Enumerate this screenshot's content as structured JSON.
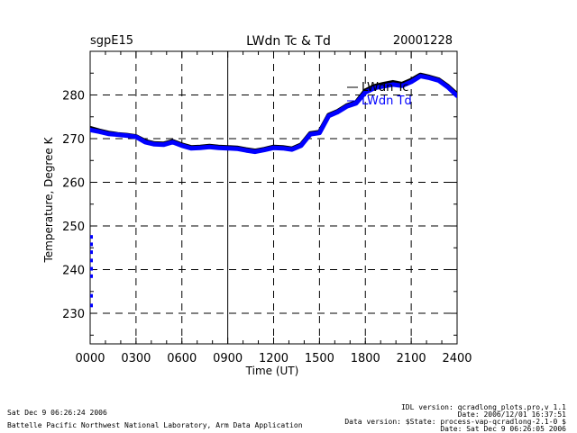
{
  "header": {
    "left": "sgpE15",
    "center": "LWdn Tc & Td",
    "right": "20001228"
  },
  "footer": {
    "timestamp": "Sat Dec  9 06:26:24 2006",
    "lab": "Battelle Pacific Northwest National Laboratory, Arm Data Application",
    "idl_version": "IDL version: qcradlong_plots.pro,v 1.1",
    "date_line": "Date: 2006/12/01 16:37:51",
    "data_version": "Data version: $State: process-vap-qcradlong-2.1-0 $",
    "date_sat": "Date: Sat Dec  9 06:26:05 2006"
  },
  "colors": {
    "tc": "#000000",
    "td": "#0000ff",
    "grid": "#000000"
  },
  "chart_data": {
    "type": "line",
    "title": "LWdn Tc & Td",
    "xlabel": "Time (UT)",
    "ylabel": "Temperature, Degree K",
    "xlim": [
      0,
      2400
    ],
    "ylim": [
      223,
      290
    ],
    "x_ticks": [
      0,
      300,
      600,
      900,
      1200,
      1500,
      1800,
      2100,
      2400
    ],
    "x_tick_labels": [
      "0000",
      "0300",
      "0600",
      "0900",
      "1200",
      "1500",
      "1800",
      "2100",
      "2400"
    ],
    "y_ticks": [
      230,
      240,
      250,
      260,
      270,
      280
    ],
    "y_tick_labels": [
      "230",
      "240",
      "250",
      "260",
      "270",
      "280"
    ],
    "grid": true,
    "legend_position": "top-right",
    "x": [
      0,
      60,
      120,
      180,
      240,
      300,
      360,
      420,
      480,
      540,
      600,
      660,
      720,
      780,
      840,
      900,
      960,
      1020,
      1080,
      1140,
      1200,
      1260,
      1320,
      1380,
      1440,
      1500,
      1560,
      1620,
      1680,
      1740,
      1800,
      1860,
      1920,
      1980,
      2040,
      2100,
      2160,
      2220,
      2280,
      2340,
      2400
    ],
    "series": [
      {
        "name": "LWdn Tc",
        "values": [
          272.4,
          271.8,
          271.3,
          271.0,
          270.8,
          270.5,
          269.4,
          268.9,
          268.8,
          269.4,
          268.6,
          268.0,
          268.1,
          268.3,
          268.1,
          268.0,
          267.9,
          267.5,
          267.2,
          267.6,
          268.1,
          268.0,
          267.7,
          268.6,
          271.2,
          271.5,
          275.4,
          276.3,
          277.6,
          278.3,
          281.0,
          282.0,
          282.5,
          282.9,
          282.5,
          283.4,
          284.6,
          284.1,
          283.5,
          282.0,
          280.1
        ]
      },
      {
        "name": "LWdn Td",
        "values": [
          272.0,
          271.6,
          271.1,
          270.9,
          270.7,
          270.4,
          269.2,
          268.7,
          268.6,
          269.2,
          268.4,
          267.8,
          267.9,
          268.1,
          267.9,
          267.8,
          267.7,
          267.3,
          267.0,
          267.4,
          267.9,
          267.8,
          267.5,
          268.4,
          271.0,
          271.3,
          275.2,
          276.1,
          277.4,
          278.1,
          280.6,
          281.6,
          282.0,
          282.4,
          282.1,
          283.0,
          284.3,
          283.9,
          283.3,
          281.8,
          279.8
        ]
      }
    ],
    "td_scatter": {
      "name": "LWdn Td",
      "x": [
        0,
        0,
        0,
        0,
        0,
        0,
        0,
        0
      ],
      "values": [
        247.5,
        245.8,
        244.0,
        242.1,
        240.2,
        238.5,
        234.0,
        231.8
      ]
    }
  }
}
